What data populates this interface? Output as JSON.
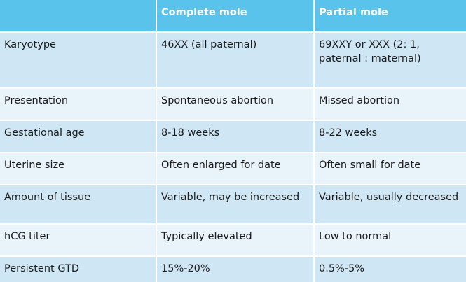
{
  "table": {
    "headers": [
      "",
      "Complete mole",
      "Partial mole"
    ],
    "rows": [
      {
        "label": "Karyotype",
        "complete": "46XX (all paternal)",
        "partial": "69XXY or XXX (2: 1, paternal : maternal)"
      },
      {
        "label": "Presentation",
        "complete": "Spontaneous abortion",
        "partial": "Missed abortion"
      },
      {
        "label": "Gestational age",
        "complete": "8-18 weeks",
        "partial": "8-22 weeks"
      },
      {
        "label": "Uterine size",
        "complete": "Often enlarged for date",
        "partial": "Often small for date"
      },
      {
        "label": "Amount of tissue",
        "complete": "Variable, may be increased",
        "partial": "Variable, usually decreased"
      },
      {
        "label": "hCG titer",
        "complete": "Typically elevated",
        "partial": "Low to normal"
      },
      {
        "label": "Persistent GTD",
        "complete": "15%-20%",
        "partial": "0.5%-5%"
      }
    ]
  },
  "colors": {
    "header_bg": "#59c3ec",
    "row_odd_bg": "#cfe7f5",
    "row_even_bg": "#e8f3fa",
    "header_text": "#ffffff",
    "body_text": "#1a1a1a"
  }
}
